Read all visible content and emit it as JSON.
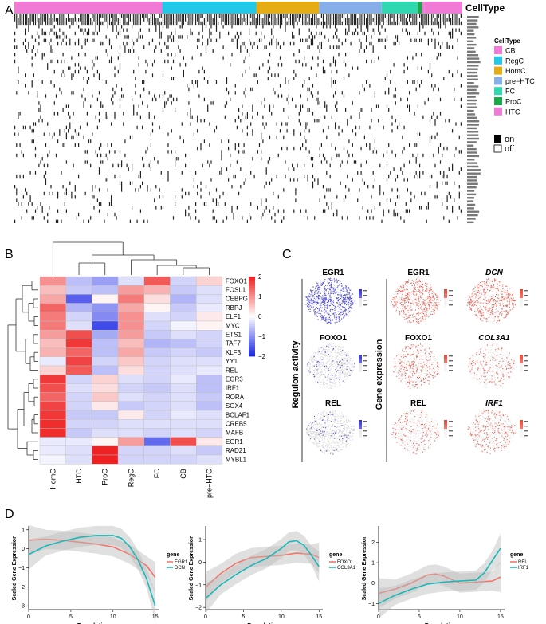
{
  "panels": {
    "a": "A",
    "b": "B",
    "c": "C",
    "d": "D"
  },
  "panelA": {
    "header": "CellType",
    "legend_title": "CellType",
    "celltypes": [
      {
        "name": "CB",
        "color": "#f07ad6"
      },
      {
        "name": "RegC",
        "color": "#22c8e8"
      },
      {
        "name": "HomC",
        "color": "#e6ac14"
      },
      {
        "name": "pre−HTC",
        "color": "#86aee8"
      },
      {
        "name": "FC",
        "color": "#2fd8b0"
      },
      {
        "name": "ProC",
        "color": "#1ba84a"
      },
      {
        "name": "HTC",
        "color": "#f07ad6"
      }
    ],
    "binary_legend": [
      "on",
      "off"
    ],
    "bar_fractions": [
      0.33,
      0.21,
      0.14,
      0.14,
      0.08,
      0.01,
      0.005
    ],
    "gene_count": 60
  },
  "panelB": {
    "chart_data": {
      "type": "heatmap",
      "title": "",
      "rows": [
        "FOXO1",
        "FOSL1",
        "CEBPG",
        "RBPJ",
        "ELF1",
        "MYC",
        "ETS1",
        "TAF7",
        "KLF3",
        "YY1",
        "REL",
        "EGR3",
        "IRF1",
        "RORA",
        "SOX4",
        "BCLAF1",
        "CREB5",
        "MAFB",
        "EGR1",
        "RAD21",
        "MYBL1"
      ],
      "columns": [
        "HomC",
        "HTC",
        "ProC",
        "RegC",
        "FC",
        "CB",
        "pre−HTC"
      ],
      "values": [
        [
          1.0,
          -0.6,
          -0.9,
          -0.3,
          1.5,
          -0.4,
          0.4
        ],
        [
          0.6,
          -0.5,
          -0.6,
          0.9,
          0.7,
          -0.5,
          -0.3
        ],
        [
          0.8,
          -1.5,
          0.1,
          1.2,
          0.3,
          -0.7,
          -0.3
        ],
        [
          1.4,
          -0.7,
          -1.0,
          0.8,
          0.1,
          -0.5,
          -0.2
        ],
        [
          1.2,
          -0.4,
          -1.1,
          1.0,
          -0.3,
          -0.4,
          0.2
        ],
        [
          1.2,
          -0.3,
          -1.7,
          1.0,
          -0.4,
          -0.1,
          0.1
        ],
        [
          0.9,
          1.6,
          -0.8,
          0.9,
          -0.5,
          -0.3,
          -0.4
        ],
        [
          0.6,
          1.8,
          -0.6,
          0.6,
          -0.7,
          -0.6,
          -0.4
        ],
        [
          0.7,
          1.4,
          -0.6,
          0.8,
          -0.5,
          -0.4,
          -0.5
        ],
        [
          -0.2,
          1.7,
          -0.4,
          0.5,
          -0.4,
          -0.3,
          -0.3
        ],
        [
          0.4,
          1.5,
          -0.6,
          0.3,
          -0.4,
          -0.3,
          -0.2
        ],
        [
          1.8,
          -0.4,
          0.4,
          -0.3,
          -0.4,
          -0.2,
          -0.6
        ],
        [
          1.6,
          -0.3,
          0.3,
          -0.4,
          -0.5,
          -0.3,
          -0.6
        ],
        [
          1.4,
          -0.4,
          0.5,
          -0.3,
          -0.4,
          -0.3,
          -0.5
        ],
        [
          1.7,
          -0.4,
          0.2,
          -0.5,
          -0.4,
          -0.3,
          -0.6
        ],
        [
          1.8,
          -0.5,
          -0.5,
          0.2,
          -0.4,
          -0.2,
          -0.3
        ],
        [
          1.9,
          -0.4,
          -0.4,
          -0.3,
          -0.3,
          -0.3,
          -0.3
        ],
        [
          1.9,
          -0.5,
          -0.3,
          -0.3,
          -0.4,
          -0.3,
          -0.4
        ],
        [
          -0.2,
          -0.2,
          0.1,
          0.9,
          -1.4,
          1.6,
          0.2
        ],
        [
          -0.2,
          -0.3,
          2.0,
          -0.4,
          -0.4,
          -0.3,
          -0.5
        ],
        [
          -0.1,
          -0.3,
          2.0,
          -0.4,
          -0.4,
          -0.4,
          -0.3
        ]
      ],
      "color_scale": {
        "min": -2,
        "max": 2,
        "low": "#1f2ae6",
        "mid": "#ffffff",
        "high": "#ee2222"
      },
      "scale_ticks": [
        "2",
        "1",
        "0",
        "−1",
        "−2"
      ]
    }
  },
  "panelC": {
    "row_label_activity": "Regulon activity",
    "row_label_expression": "Gene expression",
    "activity_titles": [
      "EGR1",
      "FOXO1",
      "REL"
    ],
    "expression_titles": [
      "EGR1",
      "FOXO1",
      "REL"
    ],
    "target_titles": [
      "DCN",
      "COL3A1",
      "IRF1"
    ],
    "activity_colors": {
      "high": "#3333cc",
      "low": "#dcdcdc"
    },
    "expression_colors": {
      "high": "#e84a3a",
      "low": "#ececec"
    }
  },
  "panelD": {
    "chart_data": [
      {
        "type": "line",
        "xlabel": "Pseudotime",
        "ylabel": "Scaled Gene Expression",
        "xlim": [
          0,
          15.5
        ],
        "ylim": [
          -3.2,
          1.2
        ],
        "xticks": [
          "0",
          "5",
          "10",
          "15"
        ],
        "yticks": [
          "1",
          "0",
          "−1",
          "−2",
          "−3"
        ],
        "legend_title": "gene",
        "series": [
          {
            "name": "EGR1",
            "color": "#f4746a",
            "x": [
              0,
              2,
              4,
              6,
              8,
              10,
              12,
              14,
              15
            ],
            "y": [
              0.45,
              0.5,
              0.45,
              0.35,
              0.25,
              0.1,
              -0.3,
              -0.9,
              -1.5
            ]
          },
          {
            "name": "DCN",
            "color": "#1ab8b8",
            "x": [
              0,
              2,
              4,
              6,
              8,
              10,
              11,
              12,
              13,
              14,
              15
            ],
            "y": [
              -0.3,
              0.15,
              0.4,
              0.6,
              0.7,
              0.7,
              0.55,
              0.1,
              -0.6,
              -1.6,
              -3.0
            ]
          }
        ]
      },
      {
        "type": "line",
        "xlabel": "Pseudotime",
        "ylabel": "Scaled Gene Expression",
        "xlim": [
          0,
          15.5
        ],
        "ylim": [
          -2.1,
          1.6
        ],
        "xticks": [
          "0",
          "5",
          "10",
          "15"
        ],
        "yticks": [
          "1",
          "0",
          "−1",
          "−2"
        ],
        "legend_title": "gene",
        "series": [
          {
            "name": "FOXO1",
            "color": "#f4746a",
            "x": [
              0,
              2,
              4,
              6,
              8,
              10,
              12,
              14,
              15
            ],
            "y": [
              -1.1,
              -0.5,
              -0.05,
              0.2,
              0.25,
              0.3,
              0.4,
              0.35,
              0.2
            ]
          },
          {
            "name": "COL3A1",
            "color": "#1ab8b8",
            "x": [
              0,
              2,
              4,
              6,
              8,
              10,
              11,
              12,
              13,
              14,
              15
            ],
            "y": [
              -1.6,
              -1.0,
              -0.55,
              -0.15,
              0.15,
              0.6,
              0.9,
              0.95,
              0.75,
              0.3,
              -0.2
            ]
          }
        ]
      },
      {
        "type": "line",
        "xlabel": "Pseudotime",
        "ylabel": "Scaled Gene Expression",
        "xlim": [
          0,
          15.5
        ],
        "ylim": [
          -1.3,
          2.8
        ],
        "xticks": [
          "0",
          "5",
          "10",
          "15"
        ],
        "yticks": [
          "2",
          "1",
          "0",
          "−1"
        ],
        "legend_title": "gene",
        "series": [
          {
            "name": "REL",
            "color": "#f4746a",
            "x": [
              0,
              2,
              4,
              6,
              7,
              8,
              10,
              12,
              14,
              15
            ],
            "y": [
              -0.5,
              -0.3,
              0.0,
              0.4,
              0.45,
              0.35,
              0.0,
              0.05,
              0.1,
              0.3
            ]
          },
          {
            "name": "IRF1",
            "color": "#1ab8b8",
            "x": [
              0,
              2,
              4,
              6,
              8,
              10,
              12,
              13,
              14,
              15
            ],
            "y": [
              -1.0,
              -0.6,
              -0.3,
              -0.05,
              0.05,
              0.1,
              0.15,
              0.5,
              1.1,
              1.7
            ]
          }
        ]
      }
    ]
  }
}
